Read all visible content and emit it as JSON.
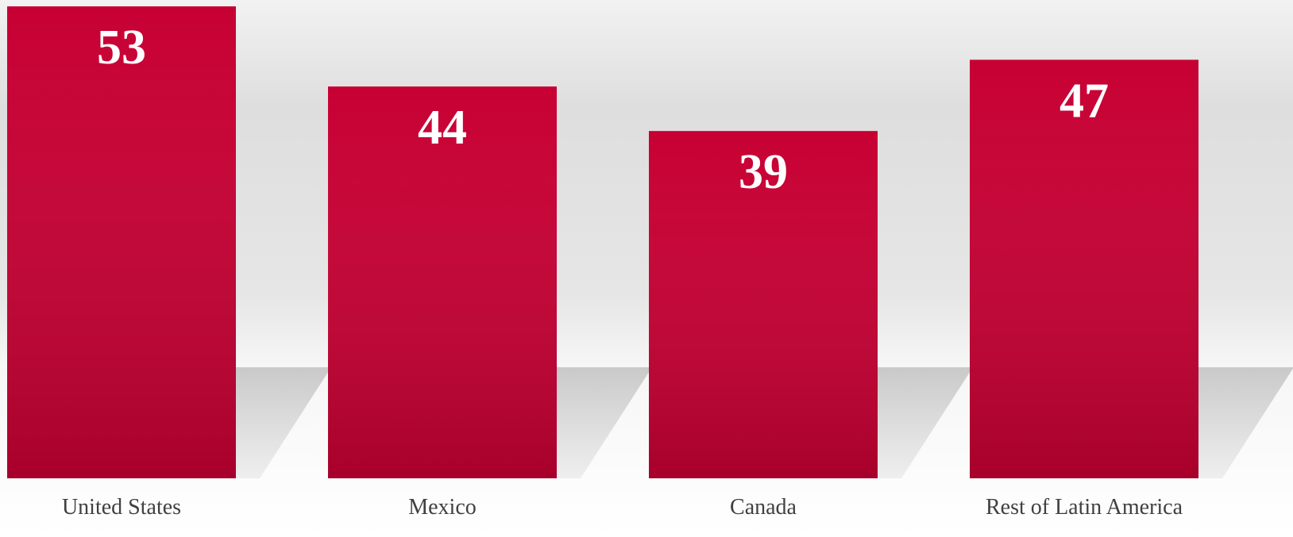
{
  "chart_data": {
    "type": "bar",
    "categories": [
      "United States",
      "Mexico",
      "Canada",
      "Rest of Latin America"
    ],
    "values": [
      53,
      44,
      39,
      47
    ],
    "color": "#c70033"
  }
}
